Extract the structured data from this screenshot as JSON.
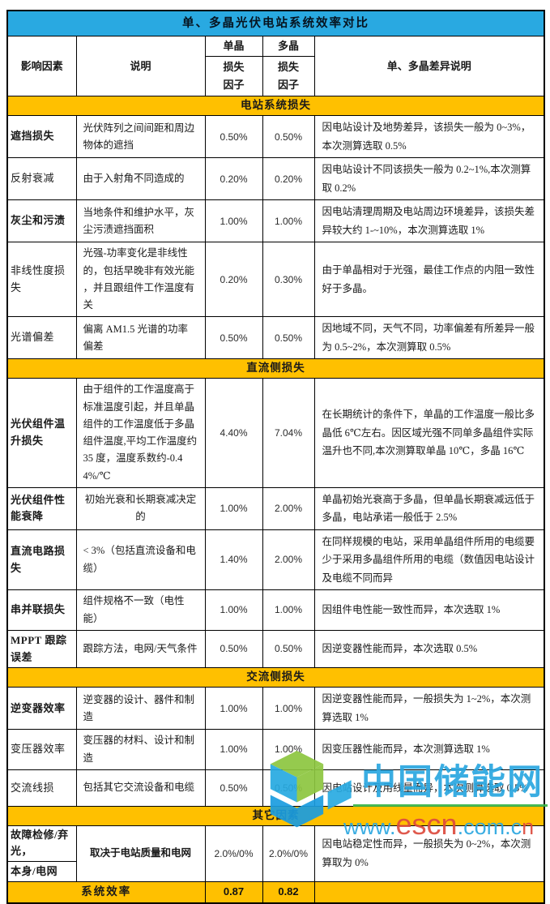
{
  "title": "单、多晶光伏电站系统效率对比",
  "header": {
    "factor": "影响因素",
    "description": "说明",
    "mono": "单晶",
    "poly": "多晶",
    "loss_factor": "损失\n因子",
    "diff": "单、多晶差异说明"
  },
  "table": {
    "sections": [
      {
        "label": "电站系统损失",
        "rows": [
          {
            "factor": "遮挡损失",
            "bold": true,
            "desc": "光伏阵列之间间距和周边物体的遮挡",
            "mono": "0.50%",
            "poly": "0.50%",
            "diff": "因电站设计及地势差异，该损失一般为 0~3%，本次测算选取 0.5%",
            "h": 41
          },
          {
            "factor": "反射衰减",
            "desc": "由于入射角不同造成的",
            "mono": "0.20%",
            "poly": "0.20%",
            "diff": "因电站设计不同该损失一般为 0.2~1%,本次测算取 0.2%",
            "h": 46
          },
          {
            "factor": "灰尘和污渍",
            "bold": true,
            "desc": "当地条件和维护水平，灰尘污渍遮挡面积",
            "mono": "1.00%",
            "poly": "1.00%",
            "diff": "因电站清理周期及电站周边环境差异，该损失差异较大约 1-~10%，本次测算选取 1%",
            "h": 46
          },
          {
            "factor": "非线性度损失",
            "desc": "光强-功率变化是非线性的，包括早晚非有效光能 ，并且跟组件工作温度有关",
            "mono": "0.20%",
            "poly": "0.30%",
            "diff": "由于单晶相对于光强，最佳工作点的内阻一致性好于多晶。",
            "h": 76
          },
          {
            "factor": "光谱偏差",
            "desc": "偏离 AM1.5 光谱的功率偏差",
            "mono": "0.50%",
            "poly": "0.50%",
            "diff": "因地域不同，天气不同，功率偏差有所差异一般为 0.5~2%，本次测算取 0.5%",
            "h": 44
          }
        ]
      },
      {
        "label": "直流侧损失",
        "rows": [
          {
            "factor": "光伏组件温升损失",
            "bold": true,
            "desc": "由于组件的工作温度高于标准温度引起，并且单晶组件的工作温度低于多晶组件温度,平均工作温度约 35 度，温度系数约-0.44%/℃",
            "mono": "4.40%",
            "poly": "7.04%",
            "diff": "在长期统计的条件下，单晶的工作温度一般比多晶低 6℃左右。因区域光强不同单多晶组件实际温升也不同,本次测算取单晶 10℃，多晶 16℃",
            "h": 118
          },
          {
            "factor": "光伏组件性能衰降",
            "bold": true,
            "desc": "初始光衰和长期衰减决定的",
            "desc_center": true,
            "mono": "1.00%",
            "poly": "2.00%",
            "diff": "单晶初始光衰高于多晶，但单晶长期衰减远低于多晶，电站承诺一般低于 2.5%",
            "h": 45
          },
          {
            "factor": "直流电路损失",
            "bold": true,
            "desc": "< 3%（包括直流设备和电缆）",
            "mono": "1.40%",
            "poly": "2.00%",
            "diff": "在同样规模的电站，采用单晶组件所用的电缆要少于采用多晶组件所用的电缆（数值因电站设计及电缆不同而异",
            "h": 68
          },
          {
            "factor": "串并联损失",
            "bold": true,
            "desc": "组件规格不一致（电性能）",
            "mono": "1.00%",
            "poly": "1.00%",
            "diff": "因组件电性能一致性而异，本次选取 1%",
            "h": 46
          },
          {
            "factor": "MPPT 跟踪误差",
            "bold": true,
            "desc": "跟踪方法，电网/天气条件",
            "mono": "0.50%",
            "poly": "0.50%",
            "diff": "因逆变器性能而异，本次选取 0.5%",
            "h": 46
          }
        ]
      },
      {
        "label": "交流侧损失",
        "rows": [
          {
            "factor": "逆变器效率",
            "bold": true,
            "desc": "逆变器的设计、器件和制造",
            "mono": "1.00%",
            "poly": "1.00%",
            "diff": "因逆变器性能而异，一般损失为 1~2%，本次测算选取 1%",
            "h": 45
          },
          {
            "factor": "变压器效率",
            "desc": "变压器的材料、设计和制造",
            "mono": "1.00%",
            "poly": "1.00%",
            "diff": "因变压器性能而异，本次测算选取 1%",
            "h": 45
          },
          {
            "factor": "交流线损",
            "desc": "包括其它交流设备和电缆",
            "mono": "0.50%",
            "poly": "0.50%",
            "diff": "因电站设计及用线量而异，本次测算选取 0.5%",
            "h": 45
          }
        ]
      },
      {
        "label": "其它因素",
        "rows": [
          {
            "factor_split": [
              "故障检修/弃光，",
              "本身/电网"
            ],
            "bold": true,
            "desc": "取决于电站质量和电网",
            "desc_bold": true,
            "desc_center": true,
            "mono": "2.0%/0%",
            "poly": "2.0%/0%",
            "diff": "因电站稳定性而异，一般损失为 0~2%，本次测算取为 0%",
            "h": 61
          }
        ]
      }
    ],
    "footer": {
      "label": "系统效率",
      "mono": "0.87",
      "poly": "0.82"
    }
  },
  "watermark": {
    "site_name": "中国储能网",
    "url_prefix": "www.",
    "url_highlight": "escn",
    "url_mid": ".com.c",
    "url_suffix": "n"
  },
  "colors": {
    "title_bar": "#29A9E1",
    "section_bar": "#FFC000",
    "border": "#000000",
    "logo_green": "#8DC63F",
    "logo_blue": "#27AAE1",
    "brand_blue": "#2AA7E0",
    "brand_red": "#DD4B3E",
    "underline_green": "#3BB54A"
  }
}
